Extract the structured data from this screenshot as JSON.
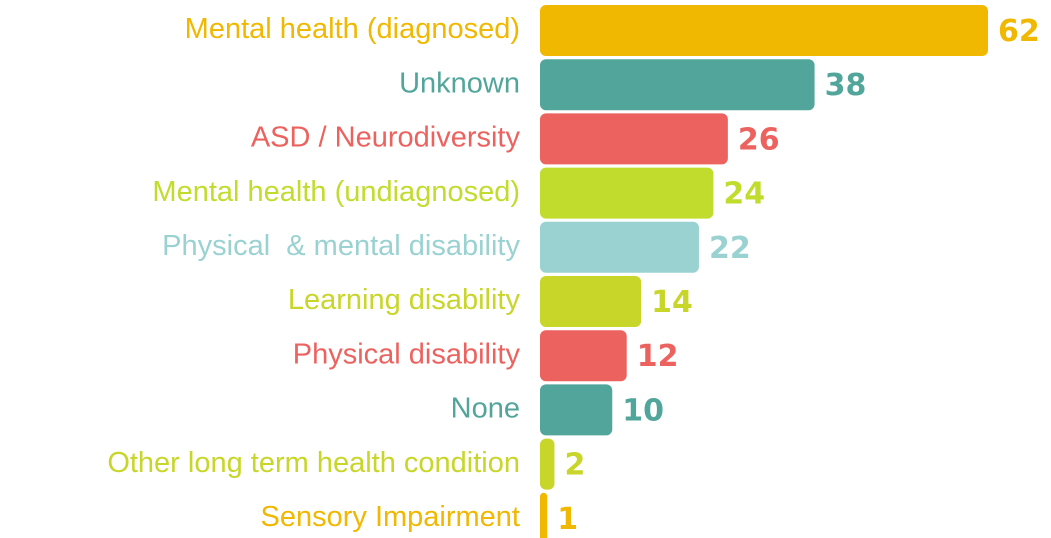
{
  "chart_data": {
    "type": "bar",
    "orientation": "horizontal",
    "categories": [
      "Mental health (diagnosed)",
      "Unknown",
      "ASD / Neurodiversity",
      "Mental health (undiagnosed)",
      "Physical  & mental disability",
      "Learning disability",
      "Physical disability",
      "None",
      "Other long term health condition",
      "Sensory Impairment"
    ],
    "values": [
      62,
      38,
      26,
      24,
      22,
      14,
      12,
      10,
      2,
      1
    ],
    "colors": [
      "#f0b800",
      "#52a59a",
      "#ec625f",
      "#c2dc2e",
      "#9ad2d2",
      "#c8d62a",
      "#ec625f",
      "#52a59a",
      "#c8d62a",
      "#f0b800"
    ]
  }
}
